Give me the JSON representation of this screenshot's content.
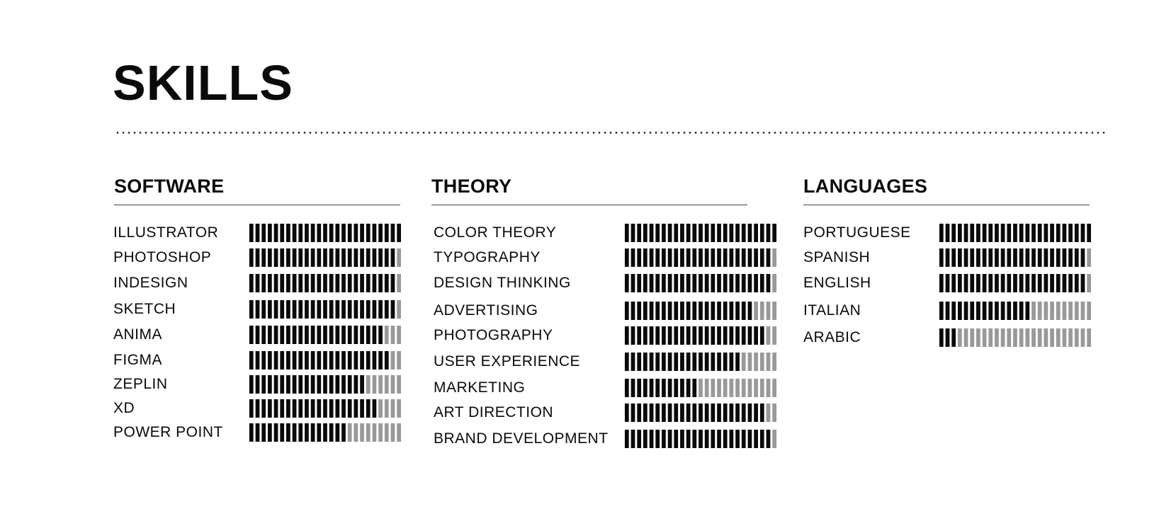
{
  "title": "SKILLS",
  "colors": {
    "filled": "#0a0a0a",
    "empty": "#999999"
  },
  "segments_per_bar": 25,
  "columns": [
    {
      "heading": "SOFTWARE",
      "items": [
        {
          "label": "ILLUSTRATOR",
          "level": 1.0
        },
        {
          "label": "PHOTOSHOP",
          "level": 0.96
        },
        {
          "label": "INDESIGN",
          "level": 0.96
        },
        {
          "label": "SKETCH",
          "level": 0.96
        },
        {
          "label": "ANIMA",
          "level": 0.88
        },
        {
          "label": "FIGMA",
          "level": 0.92
        },
        {
          "label": "ZEPLIN",
          "level": 0.76
        },
        {
          "label": "XD",
          "level": 0.84
        },
        {
          "label": "POWER POINT",
          "level": 0.64
        }
      ]
    },
    {
      "heading": "THEORY",
      "items": [
        {
          "label": "COLOR THEORY",
          "level": 1.0
        },
        {
          "label": "TYPOGRAPHY",
          "level": 0.96
        },
        {
          "label": "DESIGN THINKING",
          "level": 0.96
        },
        {
          "label": "ADVERTISING",
          "level": 0.84
        },
        {
          "label": "PHOTOGRAPHY",
          "level": 0.92
        },
        {
          "label": "USER EXPERIENCE",
          "level": 0.76
        },
        {
          "label": "MARKETING",
          "level": 0.48
        },
        {
          "label": "ART DIRECTION",
          "level": 0.92
        },
        {
          "label": "BRAND DEVELOPMENT",
          "level": 0.96
        }
      ]
    },
    {
      "heading": "LANGUAGES",
      "items": [
        {
          "label": "PORTUGUESE",
          "level": 1.0
        },
        {
          "label": "SPANISH",
          "level": 0.96
        },
        {
          "label": "ENGLISH",
          "level": 0.96
        },
        {
          "label": "ITALIAN",
          "level": 0.6
        },
        {
          "label": "ARABIC",
          "level": 0.12
        }
      ]
    }
  ]
}
